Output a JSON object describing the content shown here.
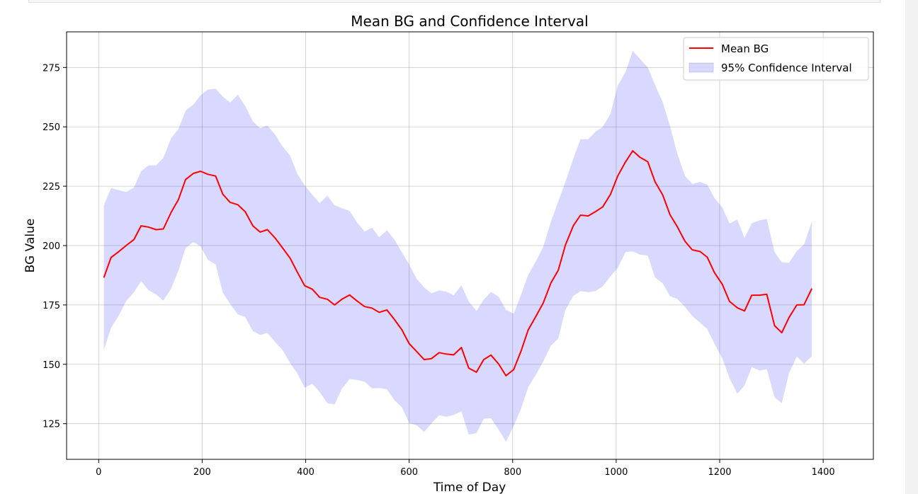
{
  "colors": {
    "mean_line": "#ff0000",
    "ci_fill": "#0000ff",
    "ci_fill_opacity": 0.15,
    "grid": "#b0b0b0",
    "axis": "#000000",
    "text": "#000000"
  },
  "chart_data": {
    "type": "line",
    "title": "Mean BG and Confidence Interval",
    "xlabel": "Time of Day",
    "ylabel": "BG Value",
    "xlim": [
      -62,
      1497
    ],
    "ylim": [
      110,
      290
    ],
    "grid": true,
    "legend_position": "top-right",
    "x_ticks": [
      0,
      200,
      400,
      600,
      800,
      1000,
      1200,
      1400
    ],
    "y_ticks": [
      125,
      150,
      175,
      200,
      225,
      250,
      275
    ],
    "x_tick_labels": [
      "0",
      "200",
      "400",
      "600",
      "800",
      "1000",
      "1200",
      "1400"
    ],
    "y_tick_labels": [
      "125",
      "150",
      "175",
      "200",
      "225",
      "250",
      "275"
    ],
    "legend": [
      "Mean BG",
      "95% Confidence Interval"
    ],
    "series": [
      {
        "name": "Mean BG",
        "type": "line",
        "points": [
          [
            10,
            186.5
          ],
          [
            24,
            195.0
          ],
          [
            39,
            197.5
          ],
          [
            53,
            200.0
          ],
          [
            68,
            202.5
          ],
          [
            82,
            208.3
          ],
          [
            96,
            207.8
          ],
          [
            111,
            206.7
          ],
          [
            125,
            207.0
          ],
          [
            140,
            214.0
          ],
          [
            154,
            219.3
          ],
          [
            168,
            227.8
          ],
          [
            183,
            230.4
          ],
          [
            197,
            231.3
          ],
          [
            211,
            230.0
          ],
          [
            226,
            229.3
          ],
          [
            240,
            221.6
          ],
          [
            254,
            218.2
          ],
          [
            269,
            217.2
          ],
          [
            283,
            214.3
          ],
          [
            298,
            208.3
          ],
          [
            312,
            205.7
          ],
          [
            326,
            206.7
          ],
          [
            341,
            203.2
          ],
          [
            355,
            199.1
          ],
          [
            370,
            194.7
          ],
          [
            384,
            188.8
          ],
          [
            398,
            183.1
          ],
          [
            413,
            181.6
          ],
          [
            427,
            178.2
          ],
          [
            442,
            177.4
          ],
          [
            456,
            175.0
          ],
          [
            470,
            177.4
          ],
          [
            485,
            179.2
          ],
          [
            499,
            176.7
          ],
          [
            514,
            174.3
          ],
          [
            528,
            173.7
          ],
          [
            542,
            171.9
          ],
          [
            557,
            172.9
          ],
          [
            571,
            169.0
          ],
          [
            586,
            164.5
          ],
          [
            600,
            158.7
          ],
          [
            614,
            155.5
          ],
          [
            629,
            152.0
          ],
          [
            643,
            152.4
          ],
          [
            658,
            154.9
          ],
          [
            672,
            154.3
          ],
          [
            686,
            154.0
          ],
          [
            701,
            157.1
          ],
          [
            715,
            148.4
          ],
          [
            730,
            146.7
          ],
          [
            744,
            152.0
          ],
          [
            758,
            153.9
          ],
          [
            773,
            150.1
          ],
          [
            787,
            145.2
          ],
          [
            802,
            147.8
          ],
          [
            816,
            155.5
          ],
          [
            830,
            164.5
          ],
          [
            845,
            170.3
          ],
          [
            859,
            175.8
          ],
          [
            874,
            184.3
          ],
          [
            888,
            189.6
          ],
          [
            902,
            200.3
          ],
          [
            917,
            208.3
          ],
          [
            931,
            212.8
          ],
          [
            946,
            212.5
          ],
          [
            960,
            214.3
          ],
          [
            974,
            216.3
          ],
          [
            989,
            221.6
          ],
          [
            1003,
            229.3
          ],
          [
            1018,
            235.2
          ],
          [
            1032,
            239.9
          ],
          [
            1046,
            237.2
          ],
          [
            1061,
            235.3
          ],
          [
            1075,
            226.9
          ],
          [
            1090,
            221.3
          ],
          [
            1104,
            213.0
          ],
          [
            1118,
            208.0
          ],
          [
            1133,
            201.8
          ],
          [
            1147,
            198.2
          ],
          [
            1162,
            197.5
          ],
          [
            1176,
            195.1
          ],
          [
            1190,
            188.6
          ],
          [
            1205,
            183.7
          ],
          [
            1219,
            176.5
          ],
          [
            1234,
            173.8
          ],
          [
            1248,
            172.5
          ],
          [
            1262,
            179.1
          ],
          [
            1277,
            179.1
          ],
          [
            1291,
            179.5
          ],
          [
            1306,
            166.3
          ],
          [
            1320,
            163.3
          ],
          [
            1334,
            169.7
          ],
          [
            1349,
            175.0
          ],
          [
            1363,
            175.1
          ],
          [
            1378,
            181.9
          ]
        ]
      },
      {
        "name": "95% Confidence Interval",
        "type": "area",
        "x": [
          10,
          24,
          39,
          53,
          68,
          82,
          96,
          111,
          125,
          140,
          154,
          168,
          183,
          197,
          211,
          226,
          240,
          254,
          269,
          283,
          298,
          312,
          326,
          341,
          355,
          370,
          384,
          398,
          413,
          427,
          442,
          456,
          470,
          485,
          499,
          514,
          528,
          542,
          557,
          571,
          586,
          600,
          614,
          629,
          643,
          658,
          672,
          686,
          701,
          715,
          730,
          744,
          758,
          773,
          787,
          802,
          816,
          830,
          845,
          859,
          874,
          888,
          902,
          917,
          931,
          946,
          960,
          974,
          989,
          1003,
          1018,
          1032,
          1046,
          1061,
          1075,
          1090,
          1104,
          1118,
          1133,
          1147,
          1162,
          1176,
          1190,
          1205,
          1219,
          1234,
          1248,
          1262,
          1277,
          1291,
          1306,
          1320,
          1334,
          1349,
          1363,
          1378
        ],
        "upper": [
          217.0,
          224.2,
          223.3,
          222.6,
          224.4,
          231.3,
          233.8,
          233.8,
          237.0,
          245.2,
          249.0,
          256.9,
          259.4,
          263.3,
          265.7,
          266.1,
          262.7,
          260.3,
          263.5,
          258.8,
          252.3,
          249.4,
          250.6,
          246.7,
          241.8,
          237.9,
          230.2,
          225.4,
          221.4,
          217.9,
          221.0,
          217.0,
          215.7,
          214.6,
          209.8,
          205.9,
          207.5,
          203.5,
          206.5,
          202.7,
          197.1,
          192.1,
          186.1,
          182.4,
          179.9,
          181.1,
          180.6,
          179.1,
          183.3,
          176.5,
          172.5,
          177.2,
          180.5,
          178.5,
          173.0,
          171.3,
          179.2,
          187.7,
          193.5,
          199.5,
          210.1,
          218.6,
          226.9,
          236.6,
          244.8,
          244.8,
          247.9,
          250.0,
          255.5,
          267.4,
          273.0,
          282.0,
          278.6,
          275.0,
          267.7,
          260.4,
          250.3,
          238.8,
          229.3,
          226.0,
          226.8,
          225.7,
          220.0,
          216.1,
          209.3,
          210.9,
          203.2,
          209.4,
          210.6,
          211.2,
          197.3,
          192.9,
          192.8,
          197.7,
          200.5,
          210.1
        ],
        "lower": [
          156.0,
          165.4,
          170.6,
          176.6,
          180.3,
          185.0,
          181.3,
          179.4,
          176.8,
          181.9,
          189.3,
          199.0,
          201.5,
          199.6,
          194.0,
          192.1,
          180.1,
          175.4,
          171.0,
          169.9,
          164.0,
          162.4,
          163.2,
          159.4,
          156.1,
          150.5,
          146.2,
          140.2,
          141.8,
          138.3,
          133.6,
          133.1,
          139.7,
          143.8,
          143.4,
          142.7,
          139.9,
          140.0,
          139.5,
          135.0,
          131.9,
          125.3,
          124.4,
          121.5,
          125.1,
          128.5,
          127.9,
          128.7,
          130.2,
          120.4,
          121.0,
          127.1,
          127.3,
          122.5,
          117.4,
          124.1,
          131.2,
          140.3,
          145.7,
          151.2,
          157.9,
          160.8,
          173.0,
          178.8,
          180.8,
          180.4,
          180.8,
          182.8,
          187.1,
          190.6,
          197.2,
          197.6,
          196.2,
          195.8,
          186.6,
          184.1,
          178.7,
          177.6,
          174.1,
          170.4,
          167.5,
          164.8,
          158.7,
          152.5,
          144.2,
          137.6,
          141.1,
          148.8,
          147.4,
          147.9,
          136.1,
          133.6,
          146.3,
          153.3,
          150.2,
          153.4
        ]
      }
    ]
  }
}
